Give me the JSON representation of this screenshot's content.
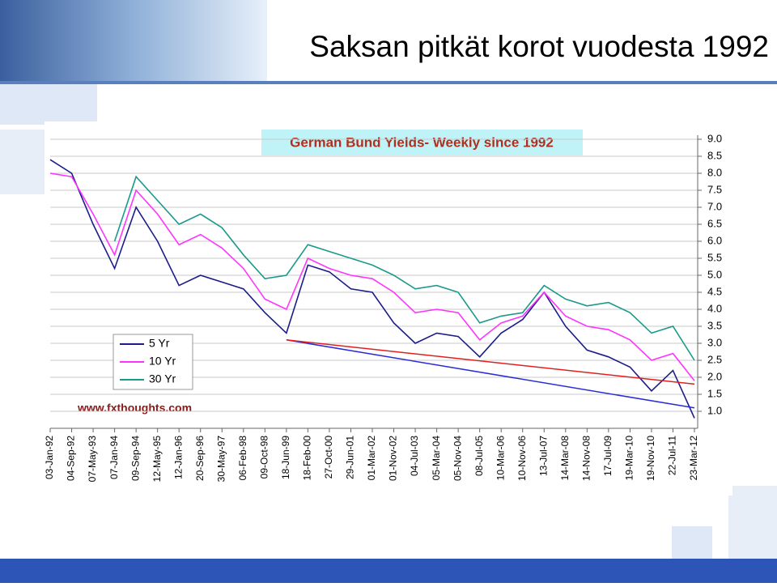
{
  "slide_title": "Saksan pitkät korot vuodesta 1992",
  "chart_data": {
    "type": "line",
    "title": "German Bund Yields- Weekly since 1992",
    "source": "www.fxthoughts.com",
    "categories": [
      "03-Jan-92",
      "04-Sep-92",
      "07-May-93",
      "07-Jan-94",
      "09-Sep-94",
      "12-May-95",
      "12-Jan-96",
      "20-Sep-96",
      "30-May-97",
      "06-Feb-98",
      "09-Oct-98",
      "18-Jun-99",
      "18-Feb-00",
      "27-Oct-00",
      "29-Jun-01",
      "01-Mar-02",
      "01-Nov-02",
      "04-Jul-03",
      "05-Mar-04",
      "05-Nov-04",
      "08-Jul-05",
      "10-Mar-06",
      "10-Nov-06",
      "13-Jul-07",
      "14-Mar-08",
      "14-Nov-08",
      "17-Jul-09",
      "19-Mar-10",
      "19-Nov-10",
      "22-Jul-11",
      "23-Mar-12"
    ],
    "series": [
      {
        "name": "5 Yr",
        "color": "#1c1c8a",
        "values": [
          8.4,
          8.0,
          6.5,
          5.2,
          7.0,
          6.0,
          4.7,
          5.0,
          4.8,
          4.6,
          3.9,
          3.3,
          5.3,
          5.1,
          4.6,
          4.5,
          3.6,
          3.0,
          3.3,
          3.2,
          2.6,
          3.3,
          3.7,
          4.5,
          3.5,
          2.8,
          2.6,
          2.3,
          1.6,
          2.2,
          0.8
        ]
      },
      {
        "name": "10 Yr",
        "color": "#ff33ff",
        "values": [
          8.0,
          7.9,
          6.8,
          5.6,
          7.5,
          6.8,
          5.9,
          6.2,
          5.8,
          5.2,
          4.3,
          4.0,
          5.5,
          5.2,
          5.0,
          4.9,
          4.5,
          3.9,
          4.0,
          3.9,
          3.1,
          3.6,
          3.8,
          4.5,
          3.8,
          3.5,
          3.4,
          3.1,
          2.5,
          2.7,
          1.9
        ]
      },
      {
        "name": "30 Yr",
        "color": "#1a9a8a",
        "values": [
          null,
          null,
          null,
          6.0,
          7.9,
          7.2,
          6.5,
          6.8,
          6.4,
          5.6,
          4.9,
          5.0,
          5.9,
          5.7,
          5.5,
          5.3,
          5.0,
          4.6,
          4.7,
          4.5,
          3.6,
          3.8,
          3.9,
          4.7,
          4.3,
          4.1,
          4.2,
          3.9,
          3.3,
          3.5,
          2.5
        ]
      }
    ],
    "trendlines": [
      {
        "color": "#2b2bdc",
        "x": [
          "18-Jun-99",
          "23-Mar-12"
        ],
        "values": [
          3.1,
          1.1
        ]
      },
      {
        "color": "#e02020",
        "x": [
          "18-Jun-99",
          "23-Mar-12"
        ],
        "values": [
          3.1,
          1.8
        ]
      }
    ],
    "ylim": [
      0.5,
      9.0
    ],
    "yticks": [
      {
        "value": 1,
        "label": "1.0"
      },
      1.5,
      {
        "value": 2,
        "label": "2.0"
      },
      2.5,
      {
        "value": 3,
        "label": "3.0"
      },
      3.5,
      {
        "value": 4,
        "label": "4.0"
      },
      4.5,
      {
        "value": 5,
        "label": "5.0"
      },
      5.5,
      {
        "value": 6,
        "label": "6.0"
      },
      6.5,
      {
        "value": 7,
        "label": "7.0"
      },
      7.5,
      {
        "value": 8,
        "label": "8.0"
      },
      8.5,
      {
        "value": 9,
        "label": "9.0"
      }
    ],
    "grid": true,
    "y_axis_side": "right",
    "legend": "lower left"
  }
}
